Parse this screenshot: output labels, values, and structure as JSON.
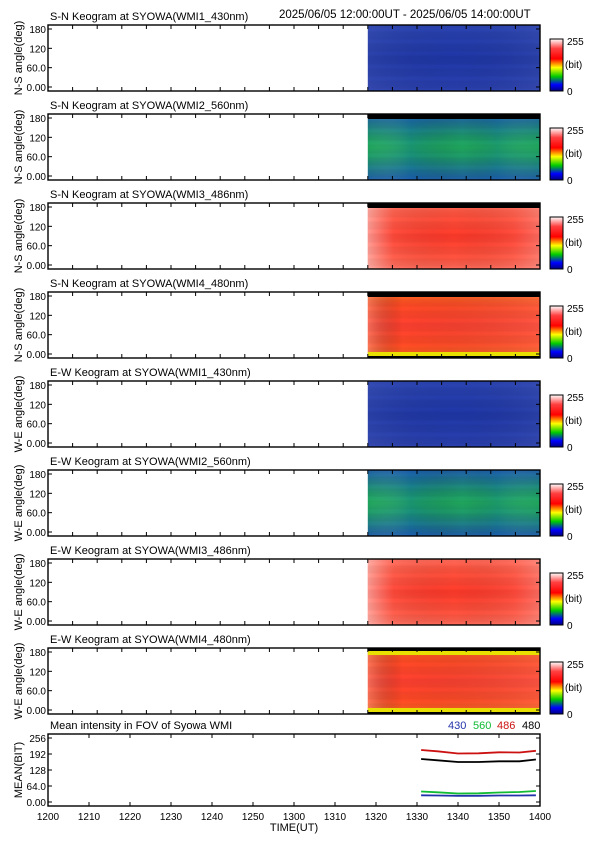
{
  "header": {
    "time_range": "2025/06/05 12:00:00UT - 2025/06/05 14:00:00UT"
  },
  "colorbar": {
    "max_label": "255",
    "unit_label": "(bit)",
    "min_label": "0"
  },
  "chart_data": [
    {
      "type": "heatmap",
      "title": "S-N Keogram at SYOWA(WMI1_430nm)",
      "ylabel": "N-S angle(deg)",
      "yticks": [
        "180",
        "120",
        "60.0",
        "0.00"
      ],
      "ylim": [
        0,
        180
      ],
      "xlim": [
        1200,
        1400
      ],
      "data_start": 1330,
      "palette": "blue",
      "colorbar_range": [
        0,
        255
      ],
      "top_band": "none",
      "bottom_band": "none"
    },
    {
      "type": "heatmap",
      "title": "S-N Keogram at SYOWA(WMI2_560nm)",
      "ylabel": "N-S angle(deg)",
      "yticks": [
        "180",
        "120",
        "60.0",
        "0.00"
      ],
      "ylim": [
        0,
        180
      ],
      "xlim": [
        1200,
        1400
      ],
      "data_start": 1330,
      "palette": "green",
      "colorbar_range": [
        0,
        255
      ],
      "top_band": "black",
      "bottom_band": "none"
    },
    {
      "type": "heatmap",
      "title": "S-N Keogram at SYOWA(WMI3_486nm)",
      "ylabel": "N-S angle(deg)",
      "yticks": [
        "180",
        "120",
        "60.0",
        "0.00"
      ],
      "ylim": [
        0,
        180
      ],
      "xlim": [
        1200,
        1400
      ],
      "data_start": 1330,
      "palette": "red",
      "colorbar_range": [
        0,
        255
      ],
      "top_band": "black",
      "bottom_band": "none"
    },
    {
      "type": "heatmap",
      "title": "S-N Keogram at SYOWA(WMI4_480nm)",
      "ylabel": "N-S angle(deg)",
      "yticks": [
        "180",
        "120",
        "60.0",
        "0.00"
      ],
      "ylim": [
        0,
        180
      ],
      "xlim": [
        1200,
        1400
      ],
      "data_start": 1330,
      "palette": "orange",
      "colorbar_range": [
        0,
        255
      ],
      "top_band": "black",
      "bottom_band": "yellow"
    },
    {
      "type": "heatmap",
      "title": "E-W Keogram at SYOWA(WMI1_430nm)",
      "ylabel": "W-E angle(deg)",
      "yticks": [
        "180",
        "120",
        "60.0",
        "0.00"
      ],
      "ylim": [
        0,
        180
      ],
      "xlim": [
        1200,
        1400
      ],
      "data_start": 1330,
      "palette": "blue",
      "colorbar_range": [
        0,
        255
      ],
      "top_band": "none",
      "bottom_band": "none"
    },
    {
      "type": "heatmap",
      "title": "E-W Keogram at SYOWA(WMI2_560nm)",
      "ylabel": "W-E angle(deg)",
      "yticks": [
        "180",
        "120",
        "60.0",
        "0.00"
      ],
      "ylim": [
        0,
        180
      ],
      "xlim": [
        1200,
        1400
      ],
      "data_start": 1330,
      "palette": "green",
      "colorbar_range": [
        0,
        255
      ],
      "top_band": "none",
      "bottom_band": "none"
    },
    {
      "type": "heatmap",
      "title": "E-W Keogram at SYOWA(WMI3_486nm)",
      "ylabel": "W-E angle(deg)",
      "yticks": [
        "180",
        "120",
        "60.0",
        "0.00"
      ],
      "ylim": [
        0,
        180
      ],
      "xlim": [
        1200,
        1400
      ],
      "data_start": 1330,
      "palette": "red",
      "colorbar_range": [
        0,
        255
      ],
      "top_band": "none",
      "bottom_band": "none"
    },
    {
      "type": "heatmap",
      "title": "E-W Keogram at SYOWA(WMI4_480nm)",
      "ylabel": "W-E angle(deg)",
      "yticks": [
        "180",
        "120",
        "60.0",
        "0.00"
      ],
      "ylim": [
        0,
        180
      ],
      "xlim": [
        1200,
        1400
      ],
      "data_start": 1330,
      "palette": "orange",
      "colorbar_range": [
        0,
        255
      ],
      "top_band": "yellow",
      "bottom_band": "yellow"
    },
    {
      "type": "line",
      "title": "Mean intensity in FOV of Syowa WMI",
      "ylabel": "MEAN(BIT)",
      "xlabel": "TIME(UT)",
      "xticks": [
        "1200",
        "1210",
        "1220",
        "1230",
        "1240",
        "1250",
        "1300",
        "1310",
        "1320",
        "1330",
        "1340",
        "1350",
        "1400"
      ],
      "yticks": [
        "256",
        "192",
        "128",
        "64.0",
        "0.00"
      ],
      "ylim": [
        0,
        256
      ],
      "xlim": [
        1200,
        1400
      ],
      "series": [
        {
          "name": "430",
          "color": "#2233aa",
          "x": [
            1331,
            1335,
            1340,
            1345,
            1350,
            1355,
            1359
          ],
          "y": [
            27,
            26,
            25,
            25,
            26,
            26,
            27
          ]
        },
        {
          "name": "560",
          "color": "#11bb33",
          "x": [
            1331,
            1335,
            1340,
            1345,
            1350,
            1355,
            1359
          ],
          "y": [
            42,
            39,
            34,
            35,
            38,
            40,
            44
          ]
        },
        {
          "name": "486",
          "color": "#cc1111",
          "x": [
            1331,
            1335,
            1340,
            1345,
            1350,
            1355,
            1359
          ],
          "y": [
            208,
            203,
            194,
            195,
            199,
            198,
            205
          ]
        },
        {
          "name": "480",
          "color": "#000000",
          "x": [
            1331,
            1335,
            1340,
            1345,
            1350,
            1355,
            1359
          ],
          "y": [
            172,
            167,
            160,
            160,
            163,
            163,
            170
          ]
        }
      ]
    }
  ]
}
